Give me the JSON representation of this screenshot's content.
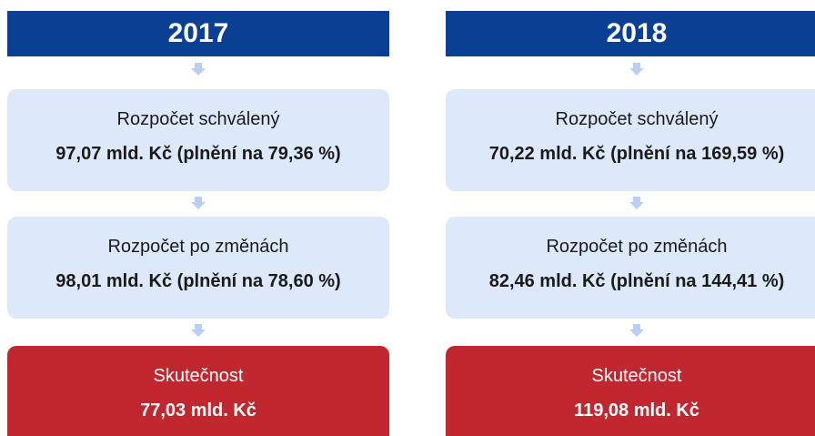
{
  "columns": [
    {
      "year": "2017",
      "approved": {
        "label": "Rozpočet schválený",
        "value": "97,07 mld. Kč (plnění na 79,36 %)"
      },
      "changed": {
        "label": "Rozpočet po změnách",
        "value": "98,01 mld. Kč (plnění na 78,60 %)"
      },
      "actual": {
        "label": "Skutečnost",
        "value": "77,03 mld. Kč"
      }
    },
    {
      "year": "2018",
      "approved": {
        "label": "Rozpočet schválený",
        "value": "70,22 mld. Kč (plnění na 169,59 %)"
      },
      "changed": {
        "label": "Rozpočet po změnách",
        "value": "82,46 mld. Kč (plnění na 144,41 %)"
      },
      "actual": {
        "label": "Skutečnost",
        "value": "119,08 mld. Kč"
      }
    }
  ]
}
